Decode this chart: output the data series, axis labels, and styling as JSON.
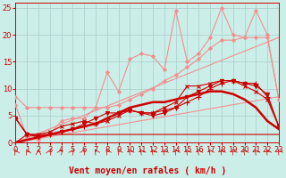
{
  "background_color": "#cceee8",
  "grid_color": "#aacccc",
  "xlabel": "Vent moyen/en rafales ( km/h )",
  "xlim": [
    0,
    23
  ],
  "ylim": [
    0,
    26
  ],
  "yticks": [
    0,
    5,
    10,
    15,
    20,
    25
  ],
  "xticks": [
    0,
    1,
    2,
    3,
    4,
    5,
    6,
    7,
    8,
    9,
    10,
    11,
    12,
    13,
    14,
    15,
    16,
    17,
    18,
    19,
    20,
    21,
    22,
    23
  ],
  "series": [
    {
      "x": [
        0,
        23
      ],
      "y": [
        0,
        8.5
      ],
      "color": "#f09090",
      "lw": 0.8,
      "marker": null,
      "ms": 0,
      "zorder": 2
    },
    {
      "x": [
        0,
        23
      ],
      "y": [
        0,
        19.5
      ],
      "color": "#f09090",
      "lw": 0.8,
      "marker": null,
      "ms": 0,
      "zorder": 2
    },
    {
      "x": [
        0,
        1,
        2,
        3,
        4,
        5,
        6,
        7,
        8,
        9,
        10,
        11,
        12,
        13,
        14,
        15,
        16,
        17,
        18,
        19,
        20,
        21,
        22,
        23
      ],
      "y": [
        8.5,
        6.5,
        6.5,
        6.5,
        6.5,
        6.5,
        6.5,
        6.5,
        6.5,
        7.0,
        8.0,
        9.0,
        10.0,
        11.5,
        12.5,
        14.0,
        15.5,
        17.5,
        19.0,
        19.0,
        19.5,
        19.5,
        19.5,
        8.0
      ],
      "color": "#f09090",
      "lw": 0.8,
      "marker": "D",
      "ms": 2,
      "zorder": 3
    },
    {
      "x": [
        0,
        1,
        2,
        3,
        4,
        5,
        6,
        7,
        8,
        9,
        10,
        11,
        12,
        13,
        14,
        15,
        16,
        17,
        18,
        19,
        20,
        21,
        22,
        23
      ],
      "y": [
        7.0,
        1.0,
        0.5,
        1.5,
        4.0,
        4.5,
        4.5,
        6.5,
        13.0,
        9.5,
        15.5,
        16.5,
        16.0,
        13.5,
        24.5,
        15.0,
        16.5,
        19.5,
        25.0,
        20.0,
        19.5,
        24.5,
        20.0,
        8.0
      ],
      "color": "#f09090",
      "lw": 0.8,
      "marker": "D",
      "ms": 2,
      "zorder": 3
    },
    {
      "x": [
        0,
        1,
        2,
        3,
        4,
        5,
        6,
        7,
        8,
        9,
        10,
        11,
        12,
        13,
        14,
        15,
        16,
        17,
        18,
        19,
        20,
        21,
        22,
        23
      ],
      "y": [
        0,
        0.5,
        1.0,
        1.5,
        2.0,
        2.5,
        3.0,
        3.5,
        4.5,
        5.5,
        6.5,
        7.0,
        7.5,
        7.5,
        8.0,
        8.5,
        9.0,
        9.5,
        9.5,
        9.0,
        8.0,
        6.5,
        4.0,
        2.5
      ],
      "color": "#cc0000",
      "lw": 1.8,
      "marker": null,
      "ms": 0,
      "zorder": 4
    },
    {
      "x": [
        0,
        1,
        2,
        3,
        4,
        5,
        6,
        7,
        8,
        9,
        10,
        11,
        12,
        13,
        14,
        15,
        16,
        17,
        18,
        19,
        20,
        21,
        22,
        23
      ],
      "y": [
        4.5,
        1.5,
        1.2,
        1.5,
        2.0,
        2.5,
        3.0,
        3.5,
        4.5,
        5.5,
        6.0,
        5.5,
        5.5,
        6.0,
        6.5,
        7.5,
        8.5,
        10.0,
        11.0,
        11.5,
        11.0,
        11.0,
        8.5,
        3.0
      ],
      "color": "#cc0000",
      "lw": 0.8,
      "marker": "+",
      "ms": 4,
      "zorder": 5
    },
    {
      "x": [
        0,
        1,
        2,
        3,
        4,
        5,
        6,
        7,
        8,
        9,
        10,
        11,
        12,
        13,
        14,
        15,
        16,
        17,
        18,
        19,
        20,
        21,
        22,
        23
      ],
      "y": [
        4.5,
        1.5,
        1.0,
        1.5,
        2.0,
        2.5,
        3.5,
        4.5,
        5.5,
        5.5,
        6.0,
        5.5,
        5.0,
        5.5,
        6.5,
        8.5,
        9.5,
        10.5,
        11.5,
        11.5,
        11.0,
        10.5,
        9.0,
        3.0
      ],
      "color": "#cc0000",
      "lw": 0.8,
      "marker": "v",
      "ms": 3,
      "zorder": 5
    },
    {
      "x": [
        0,
        1,
        2,
        3,
        4,
        5,
        6,
        7,
        8,
        9,
        10,
        11,
        12,
        13,
        14,
        15,
        16,
        17,
        18,
        19,
        20,
        21,
        22,
        23
      ],
      "y": [
        4.5,
        1.5,
        1.5,
        2.0,
        3.0,
        3.5,
        4.0,
        3.5,
        4.0,
        5.0,
        6.0,
        5.5,
        5.5,
        6.5,
        7.5,
        10.5,
        10.5,
        11.0,
        11.5,
        11.5,
        10.5,
        9.5,
        8.0,
        3.0
      ],
      "color": "#cc0000",
      "lw": 0.8,
      "marker": "x",
      "ms": 3,
      "zorder": 5
    },
    {
      "x": [
        0,
        1,
        2,
        3,
        4,
        5,
        6,
        7,
        8,
        9,
        10,
        11,
        12,
        13,
        14,
        15,
        16,
        17,
        18,
        19,
        20,
        21,
        22,
        23
      ],
      "y": [
        0,
        1.5,
        1.5,
        1.5,
        1.5,
        1.5,
        1.5,
        1.5,
        1.5,
        1.5,
        1.5,
        1.5,
        1.5,
        1.5,
        1.5,
        1.5,
        1.5,
        1.5,
        1.5,
        1.5,
        1.5,
        1.5,
        1.5,
        1.5
      ],
      "color": "#cc0000",
      "lw": 0.8,
      "marker": null,
      "ms": 0,
      "zorder": 4
    }
  ],
  "wind_arrows": {
    "directions": [
      225,
      225,
      180,
      135,
      90,
      90,
      90,
      270,
      270,
      270,
      270,
      270,
      270,
      270,
      270,
      270,
      270,
      270,
      270,
      270,
      270,
      270,
      270,
      270
    ],
    "color": "#cc0000"
  },
  "arrow_color": "#cc0000",
  "xlabel_fontsize": 7,
  "tick_fontsize": 6
}
